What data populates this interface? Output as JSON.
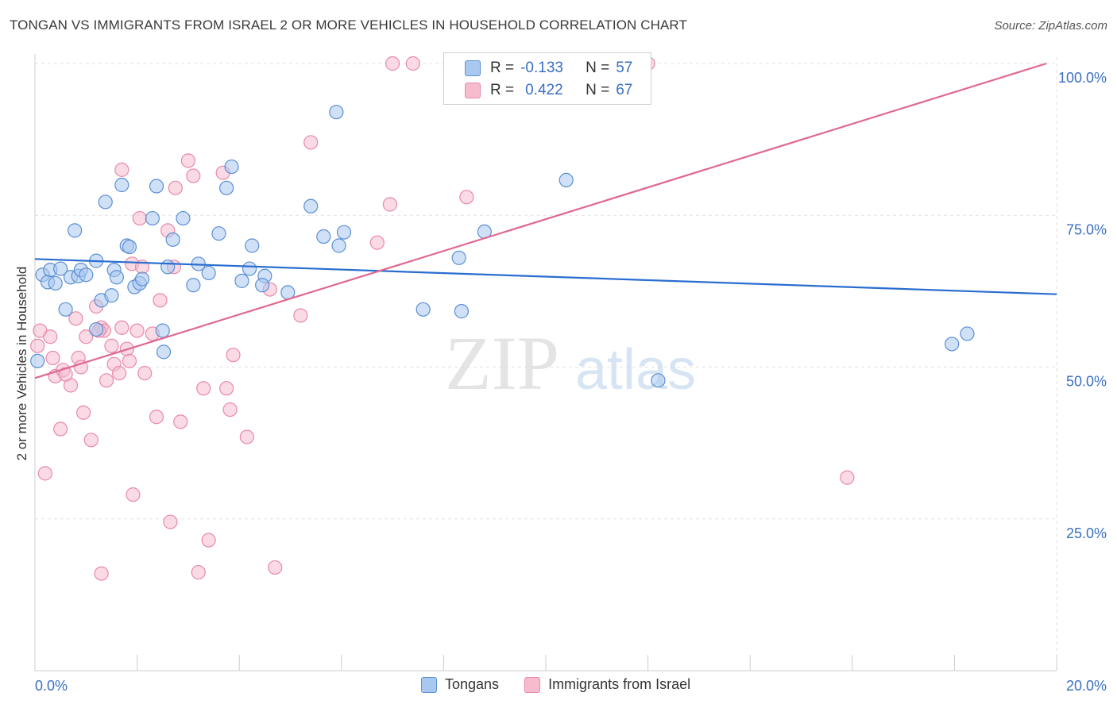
{
  "title": "TONGAN VS IMMIGRANTS FROM ISRAEL 2 OR MORE VEHICLES IN HOUSEHOLD CORRELATION CHART",
  "source": "Source: ZipAtlas.com",
  "watermark": {
    "zip": "ZIP",
    "atlas": "atlas"
  },
  "colors": {
    "tongans_fill": "#a9c8f0",
    "tongans_stroke": "#5b8fd4",
    "tongans_line": "#2a6dd0",
    "israel_fill": "#f6bccd",
    "israel_stroke": "#e88aa8",
    "israel_line": "#e06890",
    "axis_label": "#3a6fc4",
    "grid": "#e2e2e2"
  },
  "legend": {
    "r_label": "R =",
    "n_label": "N =",
    "rows": [
      {
        "r": "-0.133",
        "n": "57"
      },
      {
        "r": "0.422",
        "n": "67"
      }
    ]
  },
  "bottom_legend": [
    "Tongans",
    "Immigrants from Israel"
  ],
  "chart_data": {
    "type": "scatter",
    "ylabel": "2 or more Vehicles in Household",
    "xlim": [
      0,
      20
    ],
    "ylim": [
      0,
      102
    ],
    "x_tick_labels": [
      "0.0%",
      "20.0%"
    ],
    "y_ticks": [
      25,
      50,
      75,
      100
    ],
    "y_tick_labels": [
      "25.0%",
      "50.0%",
      "75.0%",
      "100.0%"
    ],
    "grid": true,
    "legend_position": "top-center",
    "series": [
      {
        "name": "Tongans",
        "trend": {
          "x": [
            0,
            20
          ],
          "y": [
            67.8,
            62.0
          ]
        },
        "points": [
          [
            0.05,
            51.0
          ],
          [
            0.15,
            65.2
          ],
          [
            0.25,
            64.0
          ],
          [
            0.3,
            66.0
          ],
          [
            0.4,
            63.8
          ],
          [
            0.5,
            66.2
          ],
          [
            0.6,
            59.5
          ],
          [
            0.7,
            64.8
          ],
          [
            0.78,
            72.5
          ],
          [
            0.85,
            65.0
          ],
          [
            0.9,
            66.0
          ],
          [
            1.0,
            65.2
          ],
          [
            1.2,
            56.2
          ],
          [
            1.2,
            67.5
          ],
          [
            1.3,
            61.0
          ],
          [
            1.38,
            77.2
          ],
          [
            1.5,
            61.8
          ],
          [
            1.55,
            66.0
          ],
          [
            1.6,
            64.8
          ],
          [
            1.7,
            80.0
          ],
          [
            1.8,
            70.0
          ],
          [
            1.85,
            69.8
          ],
          [
            1.95,
            63.2
          ],
          [
            2.05,
            63.8
          ],
          [
            2.1,
            64.5
          ],
          [
            2.3,
            74.5
          ],
          [
            2.38,
            79.8
          ],
          [
            2.5,
            56.0
          ],
          [
            2.52,
            52.5
          ],
          [
            2.6,
            66.5
          ],
          [
            2.7,
            71.0
          ],
          [
            2.9,
            74.5
          ],
          [
            3.1,
            63.5
          ],
          [
            3.2,
            67.0
          ],
          [
            3.4,
            65.5
          ],
          [
            3.6,
            72.0
          ],
          [
            3.75,
            79.5
          ],
          [
            3.85,
            83.0
          ],
          [
            4.05,
            64.2
          ],
          [
            4.2,
            66.2
          ],
          [
            4.25,
            70.0
          ],
          [
            4.5,
            65.0
          ],
          [
            4.45,
            63.5
          ],
          [
            4.95,
            62.3
          ],
          [
            5.4,
            76.5
          ],
          [
            5.65,
            71.5
          ],
          [
            5.95,
            70.0
          ],
          [
            5.9,
            92.0
          ],
          [
            6.05,
            72.2
          ],
          [
            7.6,
            59.5
          ],
          [
            8.3,
            68.0
          ],
          [
            8.35,
            59.2
          ],
          [
            8.8,
            72.3
          ],
          [
            10.4,
            80.8
          ],
          [
            12.2,
            47.8
          ],
          [
            17.95,
            53.8
          ],
          [
            18.25,
            55.5
          ]
        ]
      },
      {
        "name": "Immigrants from Israel",
        "trend": {
          "x": [
            0,
            19.8
          ],
          "y": [
            48.2,
            100.0
          ]
        },
        "points": [
          [
            0.05,
            53.5
          ],
          [
            0.1,
            56.0
          ],
          [
            0.2,
            32.5
          ],
          [
            0.3,
            55.0
          ],
          [
            0.35,
            51.5
          ],
          [
            0.4,
            48.5
          ],
          [
            0.5,
            39.8
          ],
          [
            0.55,
            49.5
          ],
          [
            0.7,
            47.0
          ],
          [
            0.8,
            58.0
          ],
          [
            0.85,
            51.5
          ],
          [
            0.9,
            50.0
          ],
          [
            0.95,
            42.5
          ],
          [
            1.0,
            55.0
          ],
          [
            1.1,
            38.0
          ],
          [
            1.2,
            60.0
          ],
          [
            1.3,
            16.0
          ],
          [
            1.3,
            56.5
          ],
          [
            1.35,
            56.0
          ],
          [
            1.4,
            47.8
          ],
          [
            1.5,
            53.5
          ],
          [
            1.55,
            50.5
          ],
          [
            1.65,
            49.0
          ],
          [
            1.7,
            56.5
          ],
          [
            1.7,
            82.5
          ],
          [
            1.8,
            53.0
          ],
          [
            1.85,
            51.0
          ],
          [
            1.9,
            67.0
          ],
          [
            1.92,
            29.0
          ],
          [
            2.0,
            56.0
          ],
          [
            2.05,
            74.5
          ],
          [
            2.1,
            66.5
          ],
          [
            2.15,
            49.0
          ],
          [
            2.3,
            55.5
          ],
          [
            2.38,
            41.8
          ],
          [
            2.45,
            61.0
          ],
          [
            2.6,
            72.5
          ],
          [
            2.65,
            24.5
          ],
          [
            2.72,
            66.5
          ],
          [
            2.75,
            79.5
          ],
          [
            2.85,
            41.0
          ],
          [
            3.0,
            84.0
          ],
          [
            3.1,
            81.5
          ],
          [
            3.2,
            16.2
          ],
          [
            3.3,
            46.5
          ],
          [
            3.4,
            21.5
          ],
          [
            3.68,
            82.0
          ],
          [
            3.75,
            46.5
          ],
          [
            3.82,
            43.0
          ],
          [
            3.88,
            52.0
          ],
          [
            4.15,
            38.5
          ],
          [
            4.6,
            62.8
          ],
          [
            4.7,
            17.0
          ],
          [
            5.2,
            58.5
          ],
          [
            5.4,
            87.0
          ],
          [
            6.7,
            70.5
          ],
          [
            6.95,
            76.8
          ],
          [
            7.0,
            100.0
          ],
          [
            8.45,
            78.0
          ],
          [
            10.7,
            100.0
          ],
          [
            11.8,
            100.0
          ],
          [
            12.0,
            100.0
          ],
          [
            15.9,
            31.8
          ],
          [
            7.4,
            100.0
          ],
          [
            10.9,
            100.0
          ],
          [
            1.25,
            56.0
          ],
          [
            0.6,
            48.8
          ]
        ]
      }
    ]
  }
}
